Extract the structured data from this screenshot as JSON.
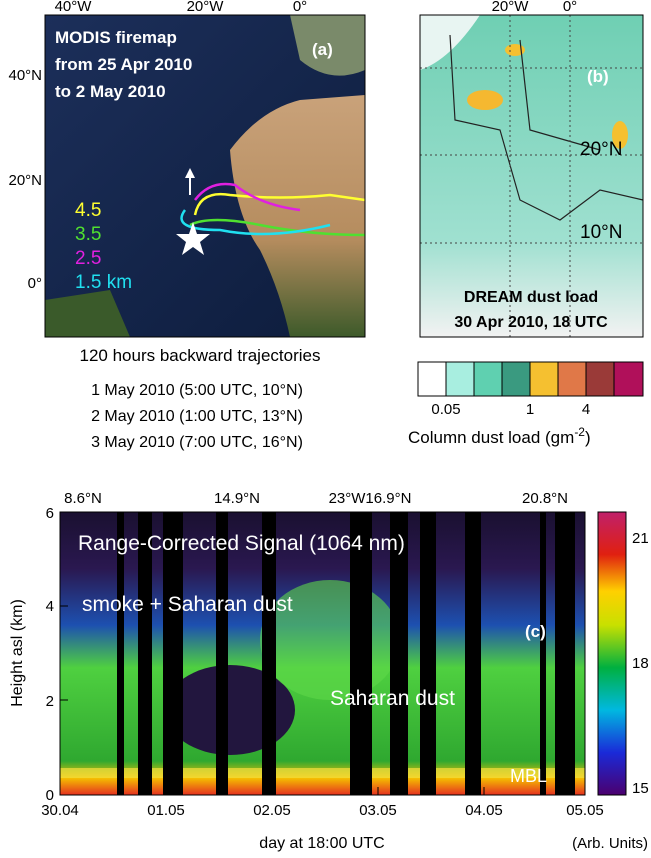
{
  "panel_a": {
    "top_axis_labels": [
      "40°W",
      "20°W",
      "0°"
    ],
    "left_axis_labels": [
      "40°N",
      "20°N",
      "0°"
    ],
    "title_lines": [
      "MODIS firemap",
      "from 25 Apr 2010",
      "to 2 May 2010"
    ],
    "panel_label": "(a)",
    "legend": [
      "4.5",
      "3.5",
      "2.5",
      "1.5 km"
    ],
    "caption": "120 hours backward trajectories",
    "dates": [
      "1 May 2010 (5:00 UTC, 10°N)",
      "2 May 2010 (1:00 UTC, 13°N)",
      "3 May 2010 (7:00 UTC, 16°N)"
    ]
  },
  "panel_b": {
    "top_axis_labels": [
      "20°W",
      "0°"
    ],
    "map_labels": [
      "20°N",
      "10°N"
    ],
    "panel_label": "(b)",
    "title_lines": [
      "DREAM dust load",
      "30 Apr 2010, 18 UTC"
    ],
    "colorbar_labels": [
      "0.05",
      "1",
      "4"
    ],
    "colorbar_title": {
      "text": "Column dust load (gm",
      "superscript": "-2",
      "suffix": ")"
    }
  },
  "panel_c": {
    "top_labels": [
      "8.6°N",
      "14.9°N",
      "23°W16.9°N",
      "20.8°N"
    ],
    "y_ticks": [
      "0",
      "2",
      "4",
      "6"
    ],
    "x_ticks": [
      "30.04",
      "01.05",
      "02.05",
      "03.05",
      "04.05",
      "05.05"
    ],
    "y_label": "Height asl (km)",
    "x_label": "day at 18:00 UTC",
    "colorbar_ticks": [
      "21",
      "18",
      "15"
    ],
    "colorbar_unit": "(Arb. Units)",
    "annotations": {
      "title": "Range-Corrected Signal (1064 nm)",
      "smoke": "smoke + Saharan dust",
      "dust": "Saharan dust",
      "mbl": "MBL",
      "panel_label": "(c)"
    }
  }
}
